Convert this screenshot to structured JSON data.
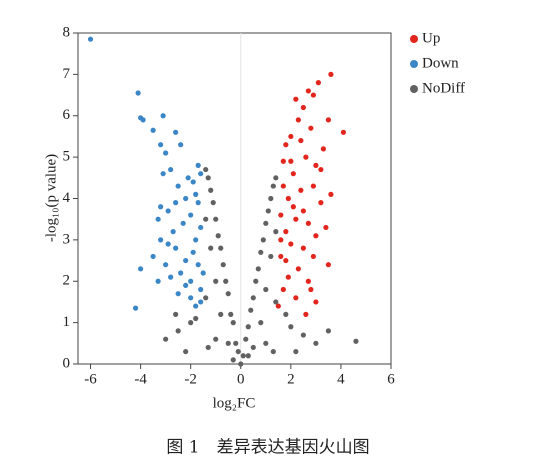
{
  "chart_data": {
    "type": "scatter",
    "xlabel": "log₂FC",
    "ylabel": "-log₁₀(p value)",
    "caption": "图 1　差异表达基因火山图",
    "xlim": [
      -6.5,
      6
    ],
    "xticks": [
      -6,
      -4,
      -2,
      0,
      2,
      4,
      6
    ],
    "ylim": [
      0,
      8
    ],
    "yticks": [
      0,
      1,
      2,
      3,
      4,
      5,
      6,
      7,
      8
    ],
    "legend": "right",
    "series": [
      {
        "name": "Up",
        "color": "#e2261e",
        "x": [
          3.6,
          3.1,
          2.9,
          2.5,
          4.1,
          3.5,
          2.3,
          2.0,
          2.8,
          3.3,
          1.8,
          2.6,
          3.0,
          2.1,
          1.7,
          3.6,
          2.4,
          2.9,
          1.9,
          3.2,
          1.6,
          2.2,
          2.7,
          3.0,
          1.8,
          2.0,
          2.5,
          1.6,
          3.5,
          2.3,
          1.9,
          2.7,
          1.7,
          2.2,
          3.0,
          1.5,
          2.6,
          3.2,
          2.4,
          1.7,
          2.1,
          1.8,
          2.9,
          2.0,
          3.4,
          1.6,
          2.5,
          2.8,
          2.2,
          2.7
        ],
        "values": [
          7.0,
          6.8,
          6.5,
          6.2,
          5.6,
          5.9,
          5.9,
          5.5,
          5.7,
          5.2,
          5.3,
          5.0,
          4.8,
          4.6,
          4.9,
          4.1,
          4.2,
          4.3,
          4.0,
          3.9,
          3.6,
          3.5,
          3.4,
          3.1,
          3.2,
          2.9,
          2.8,
          2.6,
          2.4,
          2.3,
          2.1,
          2.0,
          1.8,
          1.6,
          1.5,
          1.4,
          1.2,
          4.7,
          5.4,
          4.3,
          3.8,
          2.5,
          2.6,
          4.9,
          3.3,
          3.0,
          3.7,
          1.8,
          6.4,
          6.6
        ]
      },
      {
        "name": "Down",
        "color": "#3b86c6",
        "x": [
          -6,
          -4.1,
          -4,
          -3.9,
          -3.5,
          -3.1,
          -2.6,
          -2.4,
          -1.7,
          -3.2,
          -3,
          -2.8,
          -3.1,
          -2.5,
          -3.2,
          -3.3,
          -2.9,
          -2.2,
          -1.9,
          -1.6,
          -3.2,
          -2.7,
          -2.3,
          -2.0,
          -1.7,
          -3.5,
          -3,
          -2.6,
          -2.2,
          -1.8,
          -1.6,
          -4,
          -3.3,
          -2.8,
          -2.4,
          -2,
          -1.7,
          -2.5,
          -2.0,
          -1.6,
          -4.2,
          -1.8,
          -2.2,
          -1.9,
          -2.1,
          -1.8,
          -2.6,
          -2.9,
          -1.5,
          -1.6
        ],
        "values": [
          7.85,
          6.55,
          5.95,
          5.9,
          5.65,
          6,
          5.6,
          5.3,
          4.8,
          5.3,
          5.1,
          4.7,
          4.6,
          4.3,
          3.8,
          3.5,
          3.7,
          4.0,
          4.4,
          4.6,
          3,
          3.2,
          3.4,
          3.6,
          3.9,
          2.6,
          2.4,
          2.8,
          2.5,
          3.0,
          3.3,
          2.3,
          2.0,
          2.1,
          2.2,
          2.0,
          2.4,
          1.7,
          1.6,
          1.8,
          1.35,
          1.4,
          1.9,
          2.7,
          4.5,
          4.1,
          3.9,
          2.9,
          2.2,
          1.5
        ]
      },
      {
        "name": "NoDiff",
        "color": "#616161",
        "x": [
          0,
          0.1,
          -0.1,
          0.2,
          -0.2,
          0.3,
          -0.3,
          0.4,
          -0.4,
          0.5,
          -0.5,
          0.6,
          -0.6,
          0.7,
          -0.7,
          0.8,
          -0.8,
          0.9,
          -0.9,
          1.0,
          -1.0,
          1.1,
          -1.1,
          1.2,
          -1.2,
          1.3,
          -1.3,
          1.4,
          -1.4,
          0.5,
          -0.5,
          0.8,
          -0.8,
          1.0,
          -1.0,
          1.2,
          -1.2,
          1.4,
          -1.4,
          1.0,
          -1.0,
          1.4,
          -1.4,
          1.3,
          -1.3,
          2.0,
          -2.0,
          2.5,
          -2.5,
          3.0,
          -3.0,
          2.2,
          -2.2,
          3.5,
          4.6,
          -1.8,
          1.8,
          0.3,
          -0.3,
          -2.6
        ],
        "values": [
          0,
          0.2,
          0.3,
          0.6,
          0.5,
          0.9,
          1.0,
          1.3,
          1.2,
          1.6,
          1.7,
          2.0,
          2.0,
          2.3,
          2.4,
          2.7,
          2.8,
          3.0,
          3.1,
          3.4,
          3.5,
          3.7,
          3.9,
          4.0,
          4.2,
          4.3,
          4.5,
          4.5,
          4.7,
          0.4,
          0.5,
          1.0,
          1.2,
          1.8,
          2.0,
          2.6,
          2.8,
          3.2,
          3.5,
          0.5,
          0.6,
          1.5,
          1.6,
          0.3,
          0.4,
          0.9,
          1.0,
          0.7,
          0.8,
          0.5,
          0.6,
          0.3,
          0.3,
          0.8,
          0.55,
          1.1,
          1.2,
          0.2,
          0.1,
          1.2
        ]
      }
    ]
  }
}
